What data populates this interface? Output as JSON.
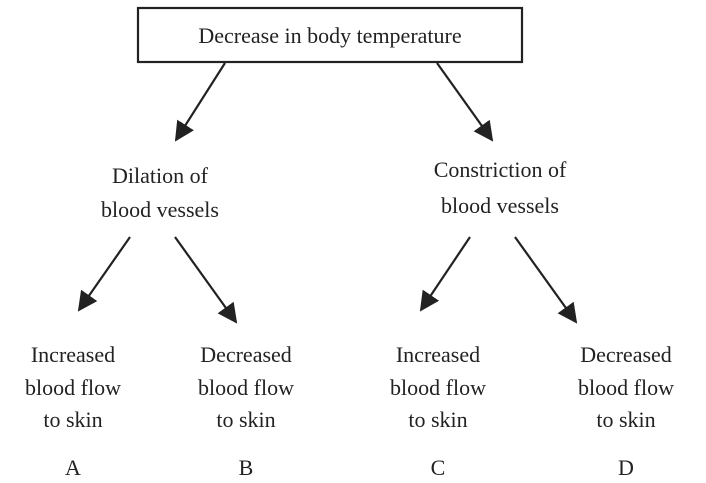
{
  "root": {
    "label": "Decrease in body temperature"
  },
  "branches": [
    {
      "label": [
        "Dilation of",
        "blood vessels"
      ],
      "leaves": [
        {
          "label": [
            "Increased",
            "blood flow",
            "to skin"
          ],
          "letter": "A"
        },
        {
          "label": [
            "Decreased",
            "blood flow",
            "to skin"
          ],
          "letter": "B"
        }
      ]
    },
    {
      "label": [
        "Constriction of",
        "blood vessels"
      ],
      "leaves": [
        {
          "label": [
            "Increased",
            "blood flow",
            "to skin"
          ],
          "letter": "C"
        },
        {
          "label": [
            "Decreased",
            "blood flow",
            "to skin"
          ],
          "letter": "D"
        }
      ]
    }
  ]
}
